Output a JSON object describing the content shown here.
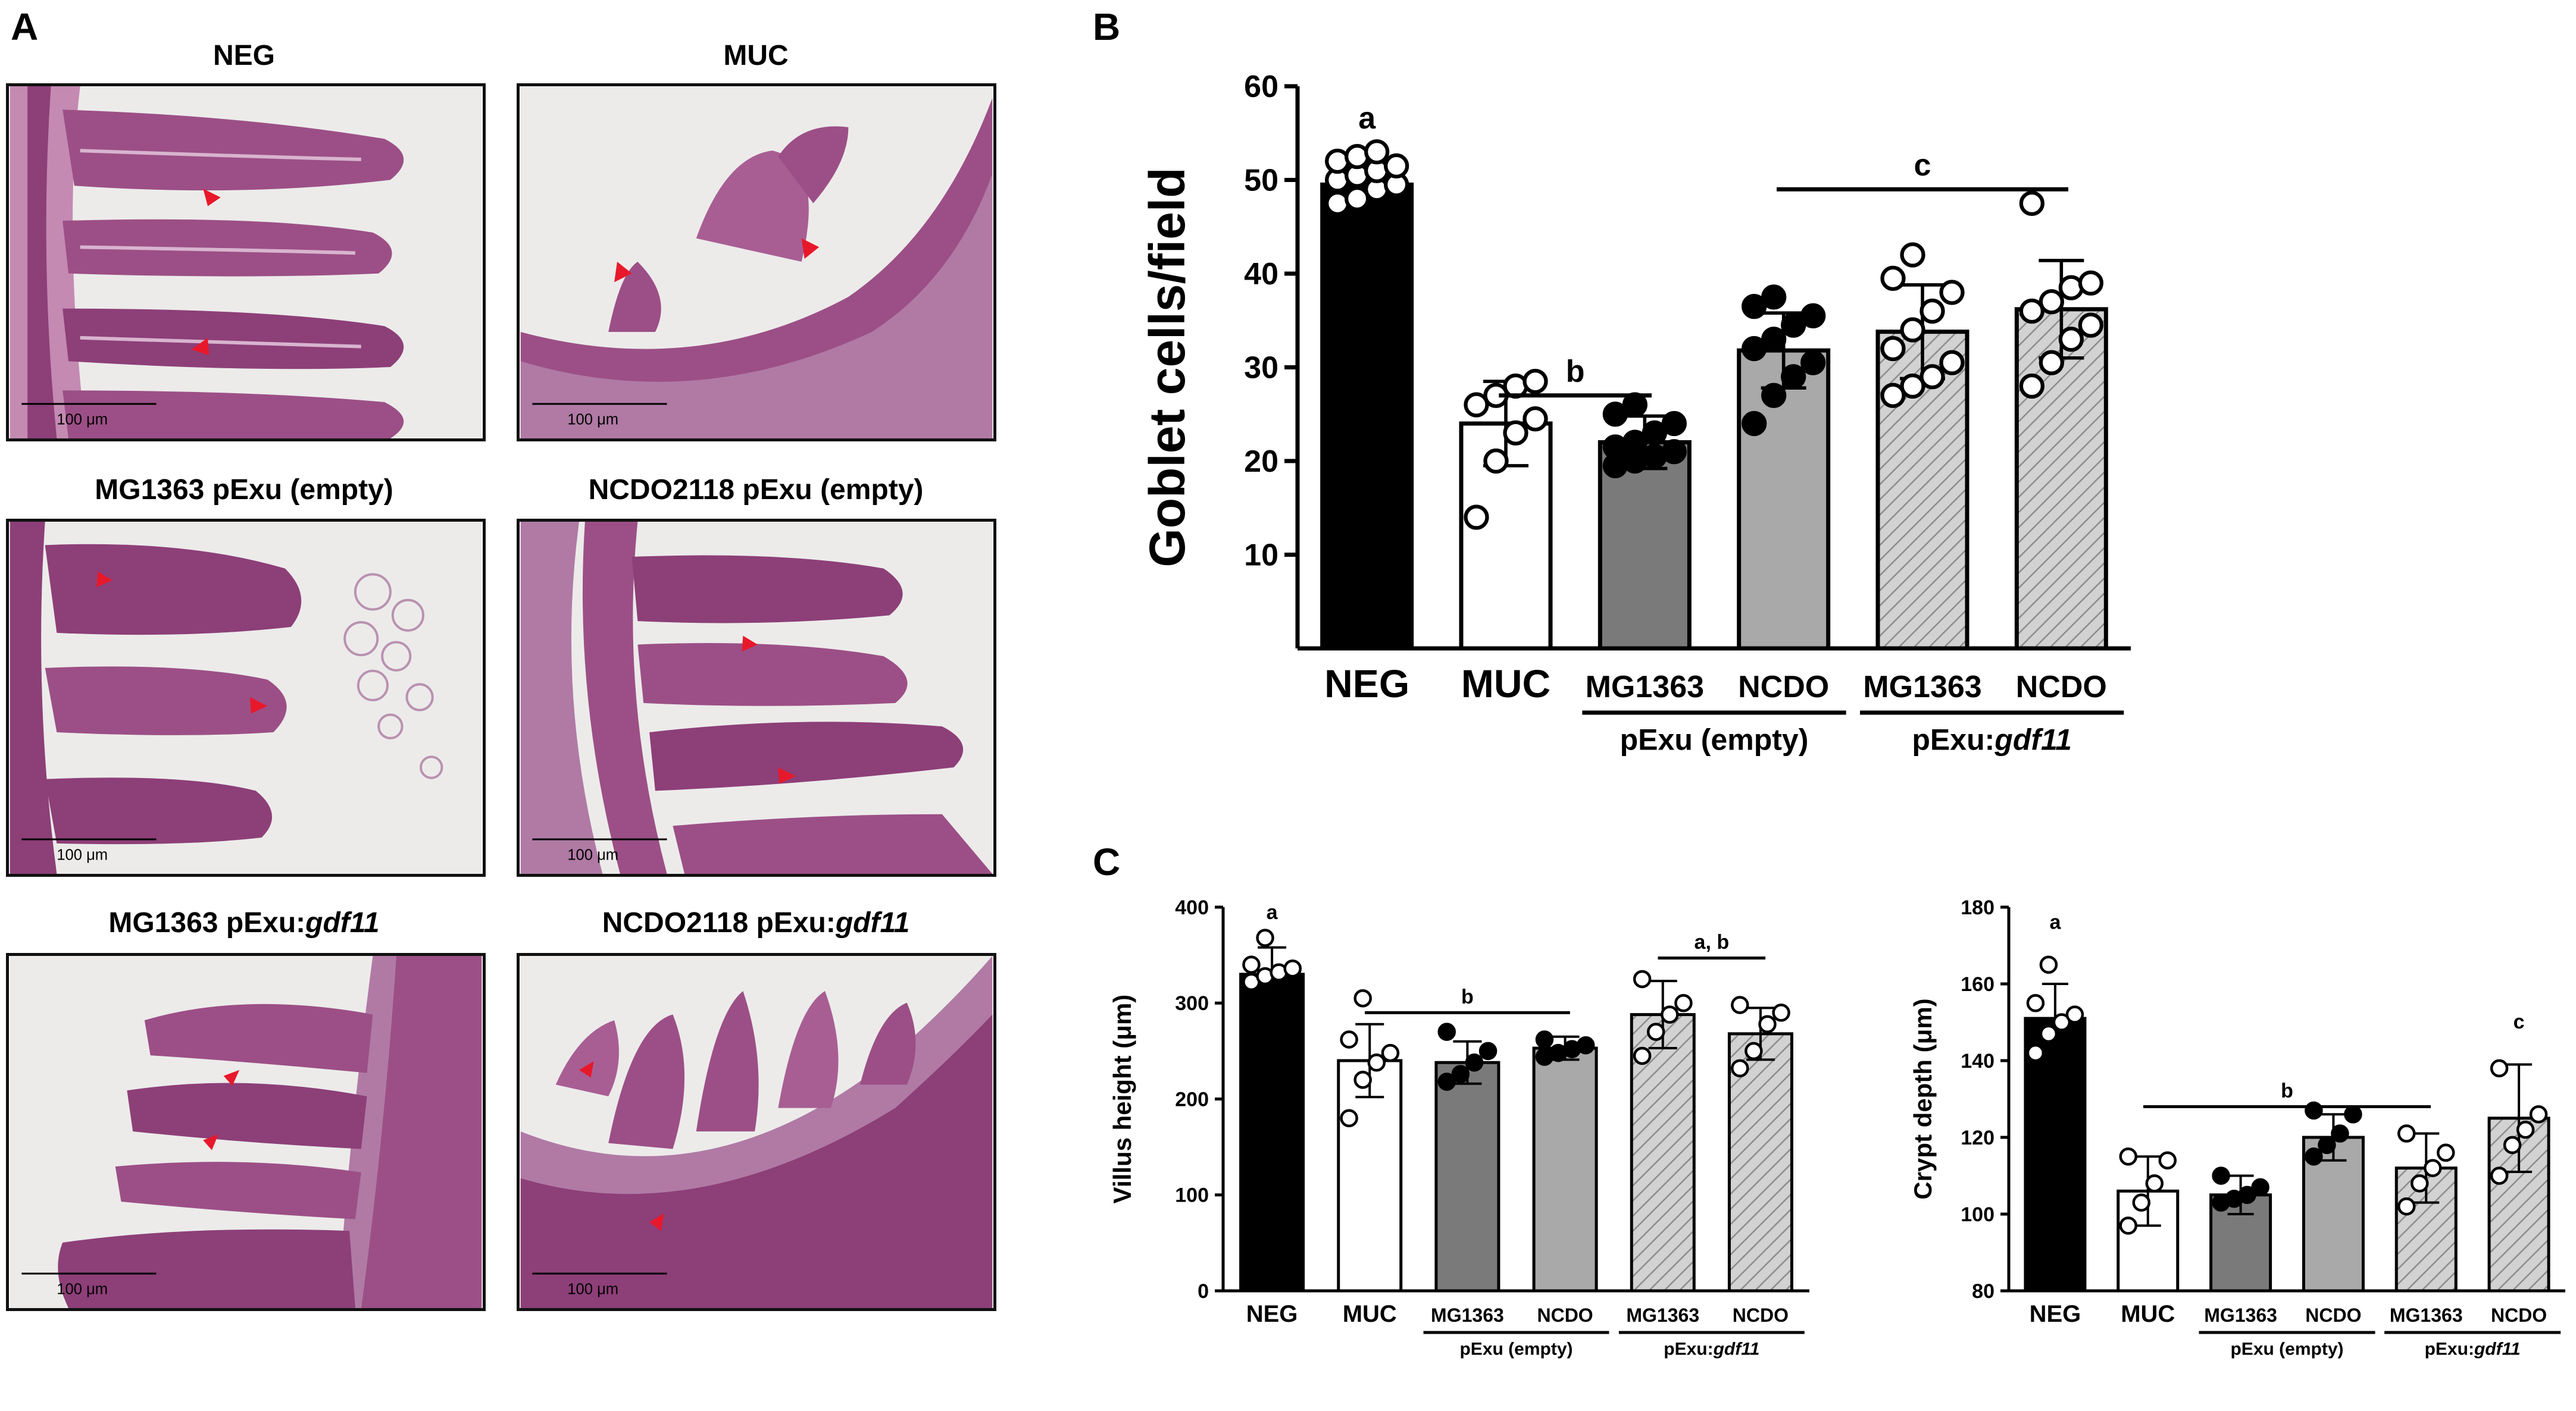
{
  "panels": {
    "A": {
      "letter": "A",
      "images": [
        {
          "title": "NEG",
          "title_italic": "",
          "scalebar": "100 μm"
        },
        {
          "title": "MUC",
          "title_italic": "",
          "scalebar": "100 μm"
        },
        {
          "title": "MG1363 pExu (empty)",
          "title_italic": "",
          "scalebar": "100 μm"
        },
        {
          "title": "NCDO2118 pExu (empty)",
          "title_italic": "",
          "scalebar": "100 μm"
        },
        {
          "title": "MG1363 pExu:",
          "title_italic": "gdf11",
          "scalebar": "100 μm"
        },
        {
          "title": "NCDO2118 pExu:",
          "title_italic": "gdf11",
          "scalebar": "100 μm"
        }
      ]
    },
    "B": {
      "letter": "B"
    },
    "C": {
      "letter": "C"
    }
  },
  "group_labels": {
    "neg": "NEG",
    "muc": "MUC",
    "mg1363": "MG1363",
    "ncdo": "NCDO",
    "pexu_empty": "pExu (empty)",
    "pexu_gdf11_prefix": "pExu:",
    "pexu_gdf11_italic": "gdf11"
  },
  "colors": {
    "neg": "#000000",
    "muc": "#ffffff",
    "mg_empty": "#7a7a7a",
    "ncdo_empty": "#a9a9a9",
    "gdf11_hatch": "#c4c4c4",
    "arrowhead": "#e8182b",
    "tissue": "#8d3f78",
    "tissue_light": "#b9769f"
  },
  "chart_data": [
    {
      "type": "bar",
      "panel": "B",
      "ylabel": "Goblet cells/field",
      "ylim": [
        0,
        60
      ],
      "yticks": [
        10,
        20,
        30,
        40,
        50,
        60
      ],
      "categories": [
        "NEG",
        "MUC",
        "MG1363",
        "NCDO",
        "MG1363",
        "NCDO"
      ],
      "values": [
        49.5,
        24,
        22,
        31.8,
        33.8,
        36.2
      ],
      "errors": [
        2,
        4.5,
        2.8,
        4,
        5,
        5.2
      ],
      "points": [
        [
          47.5,
          48,
          49,
          49.5,
          50,
          50.5,
          51,
          51.5,
          52,
          52.5,
          53
        ],
        [
          14,
          20,
          23,
          24.5,
          26,
          27,
          28,
          28.5
        ],
        [
          19.5,
          20,
          20.5,
          21,
          21.5,
          22,
          23,
          24,
          25,
          26
        ],
        [
          24,
          27,
          29,
          30.5,
          32,
          33,
          34.5,
          35.5,
          36.5,
          37.5
        ],
        [
          27,
          28,
          29,
          30.5,
          32,
          34,
          36,
          38,
          39.5,
          42
        ],
        [
          28,
          30.5,
          33,
          34.5,
          36,
          37,
          38.5,
          39,
          47.5
        ]
      ],
      "significance": [
        {
          "label": "a",
          "from": 0,
          "to": 0,
          "y": 54
        },
        {
          "label": "b",
          "from": 1,
          "to": 2,
          "y": 27,
          "line": true
        },
        {
          "label": "c",
          "from": 3,
          "to": 5,
          "y": 49,
          "line": true
        }
      ]
    },
    {
      "type": "bar",
      "panel": "C-left",
      "ylabel": "Villus height (μm)",
      "ylim": [
        0,
        400
      ],
      "yticks": [
        0,
        100,
        200,
        300,
        400
      ],
      "categories": [
        "NEG",
        "MUC",
        "MG1363",
        "NCDO",
        "MG1363",
        "NCDO"
      ],
      "values": [
        330,
        240,
        238,
        253,
        288,
        268
      ],
      "errors": [
        28,
        38,
        22,
        12,
        35,
        27
      ],
      "points": [
        [
          322,
          328,
          332,
          336,
          340,
          368
        ],
        [
          180,
          220,
          238,
          248,
          262,
          305
        ],
        [
          218,
          226,
          238,
          250,
          270
        ],
        [
          244,
          248,
          252,
          256,
          262
        ],
        [
          245,
          270,
          288,
          300,
          325
        ],
        [
          232,
          250,
          278,
          290,
          298
        ]
      ],
      "significance": [
        {
          "label": "a",
          "from": 0,
          "to": 0,
          "y": 378
        },
        {
          "label": "b",
          "from": 1,
          "to": 3,
          "y": 290,
          "line": true
        },
        {
          "label": "a, b",
          "from": 4,
          "to": 5,
          "y": 347,
          "line": true
        }
      ]
    },
    {
      "type": "bar",
      "panel": "C-right",
      "ylabel": "Crypt depth (μm)",
      "ylim": [
        80,
        180
      ],
      "yticks": [
        80,
        100,
        120,
        140,
        160,
        180
      ],
      "categories": [
        "NEG",
        "MUC",
        "MG1363",
        "NCDO",
        "MG1363",
        "NCDO"
      ],
      "values": [
        151,
        106,
        105,
        120,
        112,
        125
      ],
      "errors": [
        9,
        9,
        5,
        6,
        9,
        14
      ],
      "points": [
        [
          142,
          147,
          150,
          152,
          155,
          165
        ],
        [
          97,
          103,
          108,
          114,
          115
        ],
        [
          103,
          104,
          105,
          107,
          110
        ],
        [
          115,
          118,
          121,
          126,
          127
        ],
        [
          102,
          108,
          112,
          116,
          121
        ],
        [
          110,
          118,
          122,
          126,
          138
        ]
      ],
      "significance": [
        {
          "label": "a",
          "from": 0,
          "to": 0,
          "y": 172
        },
        {
          "label": "b",
          "from": 1,
          "to": 4,
          "y": 128,
          "line": true
        },
        {
          "label": "c",
          "from": 5,
          "to": 5,
          "y": 146
        }
      ]
    }
  ]
}
